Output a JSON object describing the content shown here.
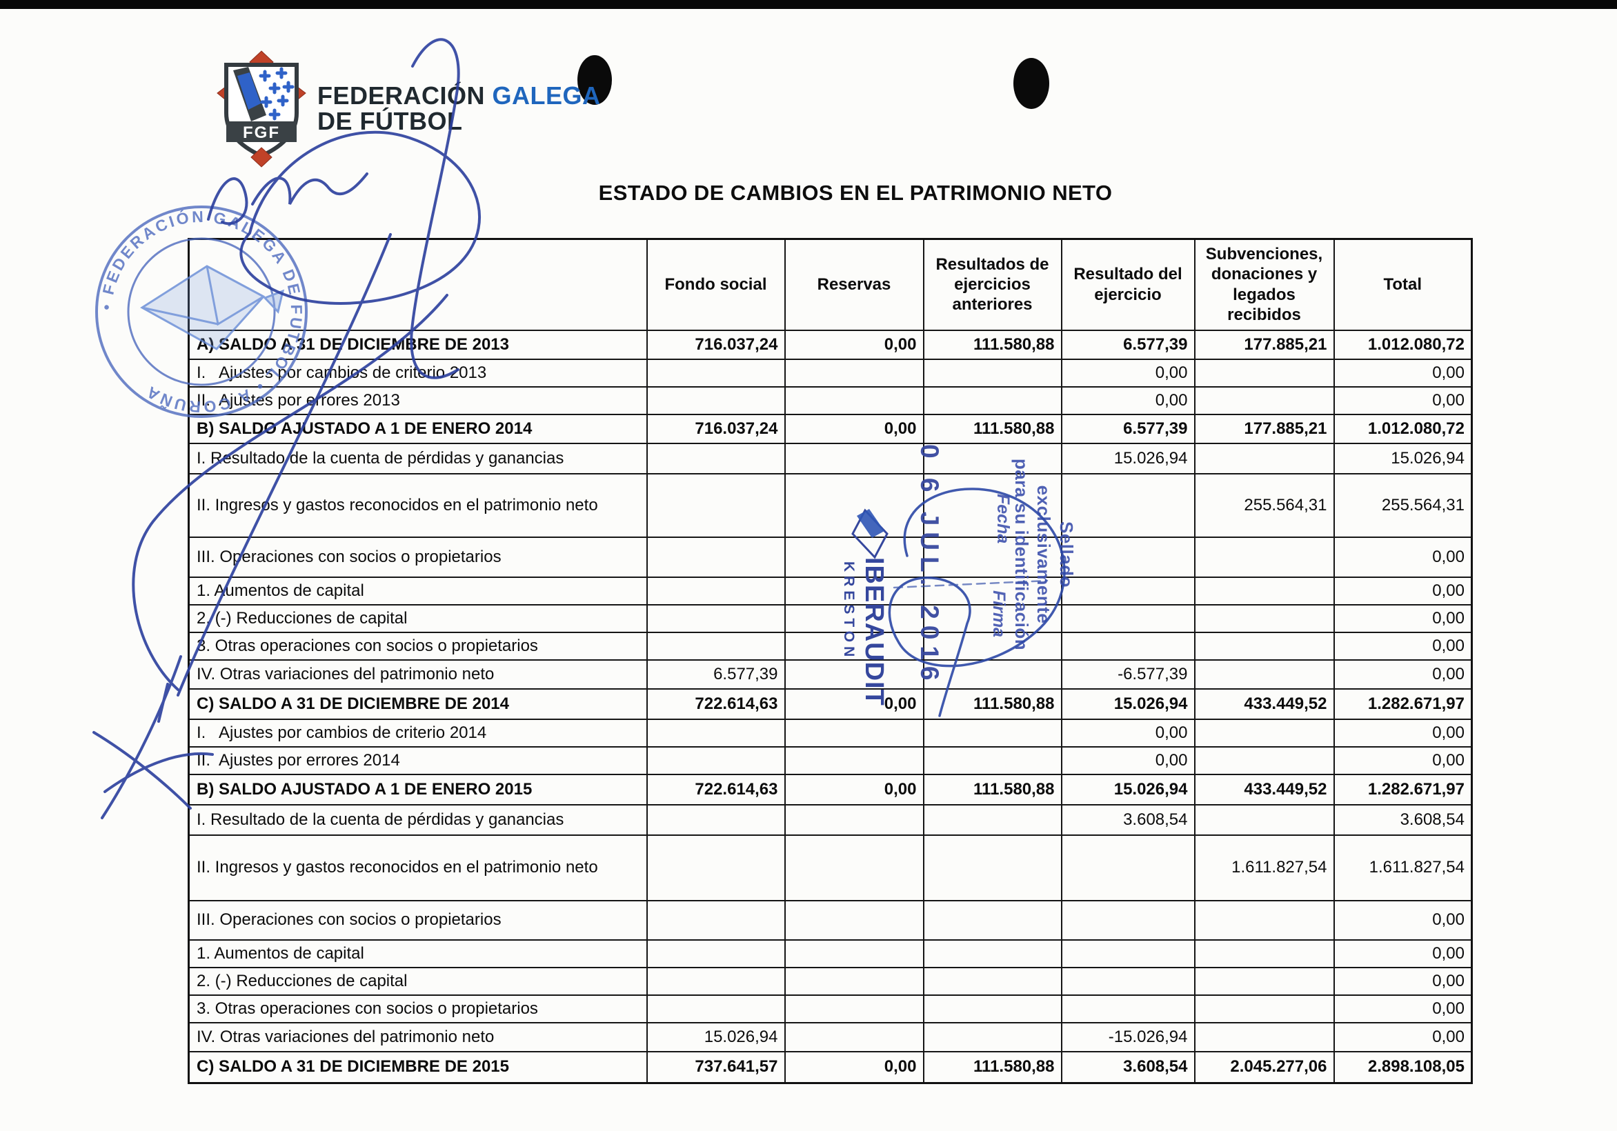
{
  "logo": {
    "monogram": "FGF",
    "name_primary": "FEDERACIÓN",
    "name_accent": "GALEGA",
    "name_secondary": "DE FÚTBOL"
  },
  "document": {
    "title": "ESTADO DE CAMBIOS EN EL PATRIMONIO NETO"
  },
  "round_stamp": {
    "ring_text": "• FEDERACIÓN GALEGA DE FUTBOL • A CORUÑA"
  },
  "audit_stamp": {
    "line1": "Sellado exclusivamente",
    "line2": "para su identificación",
    "fecha_label": "Fecha",
    "firma_label": "Firma",
    "date": "0 6 JUL. 2016",
    "brand": "IBERAUDIT",
    "brand_sub": "KRESTON"
  },
  "colors": {
    "pen_blue": "#2b3f9e",
    "stamp_blue": "#4a67bd",
    "accent_blue": "#1f66bd",
    "shield_dark": "#3a4145",
    "shield_red": "#c04228",
    "shield_blue": "#2f62c8"
  },
  "table": {
    "columns": [
      "",
      "Fondo social",
      "Reservas",
      "Resultados de ejercicios anteriores",
      "Resultado del ejercicio",
      "Subvenciones, donaciones y legados recibidos",
      "Total"
    ],
    "rows": [
      {
        "label": "A) SALDO A 31 DE DICIEMBRE DE 2013",
        "bold": true,
        "values": [
          "716.037,24",
          "0,00",
          "111.580,88",
          "6.577,39",
          "177.885,21",
          "1.012.080,72"
        ]
      },
      {
        "label": "I.   Ajustes por cambios de criterio 2013",
        "bold": false,
        "values": [
          "",
          "",
          "",
          "0,00",
          "",
          "0,00"
        ]
      },
      {
        "label": "II.  Ajustes por errores 2013",
        "bold": false,
        "values": [
          "",
          "",
          "",
          "0,00",
          "",
          "0,00"
        ]
      },
      {
        "label": "B) SALDO AJUSTADO A 1 DE ENERO 2014",
        "bold": true,
        "values": [
          "716.037,24",
          "0,00",
          "111.580,88",
          "6.577,39",
          "177.885,21",
          "1.012.080,72"
        ]
      },
      {
        "label": "I. Resultado de la cuenta de pérdidas y ganancias",
        "bold": false,
        "values": [
          "",
          "",
          "",
          "15.026,94",
          "",
          "15.026,94"
        ]
      },
      {
        "label": "II. Ingresos y gastos reconocidos en el patrimonio neto",
        "bold": false,
        "values": [
          "",
          "",
          "",
          "",
          "255.564,31",
          "255.564,31"
        ]
      },
      {
        "label": "III. Operaciones con socios o propietarios",
        "bold": false,
        "values": [
          "",
          "",
          "",
          "",
          "",
          "0,00"
        ]
      },
      {
        "label": "1. Aumentos de capital",
        "bold": false,
        "values": [
          "",
          "",
          "",
          "",
          "",
          "0,00"
        ]
      },
      {
        "label": "2. (-) Reducciones de capital",
        "bold": false,
        "values": [
          "",
          "",
          "",
          "",
          "",
          "0,00"
        ]
      },
      {
        "label": "3. Otras operaciones con socios o propietarios",
        "bold": false,
        "values": [
          "",
          "",
          "",
          "",
          "",
          "0,00"
        ]
      },
      {
        "label": "IV. Otras variaciones del patrimonio neto",
        "bold": false,
        "values": [
          "6.577,39",
          "",
          "",
          "-6.577,39",
          "",
          "0,00"
        ]
      },
      {
        "label": "C) SALDO A 31 DE DICIEMBRE DE 2014",
        "bold": true,
        "values": [
          "722.614,63",
          "0,00",
          "111.580,88",
          "15.026,94",
          "433.449,52",
          "1.282.671,97"
        ]
      },
      {
        "label": "I.   Ajustes por cambios de criterio 2014",
        "bold": false,
        "values": [
          "",
          "",
          "",
          "0,00",
          "",
          "0,00"
        ]
      },
      {
        "label": "II.  Ajustes por errores 2014",
        "bold": false,
        "values": [
          "",
          "",
          "",
          "0,00",
          "",
          "0,00"
        ]
      },
      {
        "label": "B) SALDO AJUSTADO A 1 DE ENERO 2015",
        "bold": true,
        "values": [
          "722.614,63",
          "0,00",
          "111.580,88",
          "15.026,94",
          "433.449,52",
          "1.282.671,97"
        ]
      },
      {
        "label": "I. Resultado de la cuenta de pérdidas y ganancias",
        "bold": false,
        "values": [
          "",
          "",
          "",
          "3.608,54",
          "",
          "3.608,54"
        ]
      },
      {
        "label": "II. Ingresos y gastos reconocidos en el patrimonio neto",
        "bold": false,
        "values": [
          "",
          "",
          "",
          "",
          "1.611.827,54",
          "1.611.827,54"
        ]
      },
      {
        "label": "III. Operaciones con socios o propietarios",
        "bold": false,
        "values": [
          "",
          "",
          "",
          "",
          "",
          "0,00"
        ]
      },
      {
        "label": "1. Aumentos de capital",
        "bold": false,
        "values": [
          "",
          "",
          "",
          "",
          "",
          "0,00"
        ]
      },
      {
        "label": "2. (-) Reducciones de capital",
        "bold": false,
        "values": [
          "",
          "",
          "",
          "",
          "",
          "0,00"
        ]
      },
      {
        "label": "3. Otras operaciones con socios o propietarios",
        "bold": false,
        "values": [
          "",
          "",
          "",
          "",
          "",
          "0,00"
        ]
      },
      {
        "label": "IV. Otras variaciones del patrimonio neto",
        "bold": false,
        "values": [
          "15.026,94",
          "",
          "",
          "-15.026,94",
          "",
          "0,00"
        ]
      },
      {
        "label": "C) SALDO A 31 DE DICIEMBRE DE 2015",
        "bold": true,
        "values": [
          "737.641,57",
          "0,00",
          "111.580,88",
          "3.608,54",
          "2.045.277,06",
          "2.898.108,05"
        ]
      }
    ]
  }
}
